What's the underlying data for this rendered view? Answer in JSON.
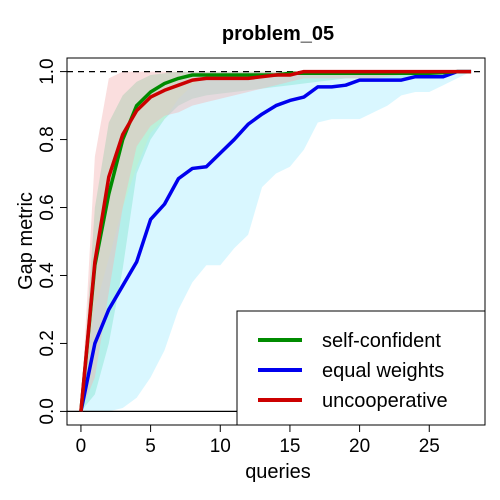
{
  "chart_data": {
    "type": "line",
    "title": "problem_05",
    "xlabel": "queries",
    "ylabel": "Gap metric",
    "xlim": [
      -1,
      29
    ],
    "ylim": [
      -0.04,
      1.04
    ],
    "xticks": [
      0,
      5,
      10,
      15,
      20,
      25
    ],
    "yticks": [
      0.0,
      0.2,
      0.4,
      0.6,
      0.8,
      1.0
    ],
    "xtick_labels": [
      "0",
      "5",
      "10",
      "15",
      "20",
      "25"
    ],
    "ytick_labels": [
      "0.0",
      "0.2",
      "0.4",
      "0.6",
      "0.8",
      "1.0"
    ],
    "reference_lines": [
      {
        "y": 1.0,
        "style": "dashed",
        "color": "#000000"
      },
      {
        "y": 0.0,
        "style": "solid",
        "color": "#000000"
      }
    ],
    "grid": false,
    "legend_position": "bottom-right",
    "series": [
      {
        "name": "self-confident",
        "color": "#008b00",
        "band_color": "#66ddaa",
        "x": [
          0,
          1,
          2,
          3,
          4,
          5,
          6,
          7,
          8,
          9,
          10,
          11,
          12,
          13,
          14,
          15,
          16,
          17,
          18,
          19,
          20,
          21,
          22,
          23,
          24,
          25,
          26,
          27,
          28
        ],
        "y": [
          0.0,
          0.43,
          0.64,
          0.8,
          0.9,
          0.94,
          0.965,
          0.98,
          0.99,
          0.99,
          0.99,
          0.99,
          0.99,
          0.99,
          0.99,
          0.995,
          0.995,
          0.995,
          0.995,
          0.995,
          0.995,
          0.995,
          0.995,
          0.995,
          0.995,
          0.995,
          0.997,
          1.0,
          1.0
        ],
        "lower": [
          0.0,
          0.05,
          0.2,
          0.42,
          0.7,
          0.8,
          0.86,
          0.9,
          0.92,
          0.93,
          0.935,
          0.94,
          0.945,
          0.95,
          0.955,
          0.96,
          0.965,
          0.97,
          0.975,
          0.98,
          0.98,
          0.98,
          0.98,
          0.98,
          0.98,
          0.985,
          0.99,
          0.995,
          1.0
        ],
        "upper": [
          0.0,
          0.6,
          0.85,
          0.93,
          0.97,
          0.99,
          0.995,
          1.0,
          1.0,
          1.0,
          1.0,
          1.0,
          1.0,
          1.0,
          1.0,
          1.0,
          1.0,
          1.0,
          1.0,
          1.0,
          1.0,
          1.0,
          1.0,
          1.0,
          1.0,
          1.0,
          1.0,
          1.0,
          1.0
        ]
      },
      {
        "name": "equal weights",
        "color": "#0000ee",
        "band_color": "#aaeeff",
        "x": [
          0,
          1,
          2,
          3,
          4,
          5,
          6,
          7,
          8,
          9,
          10,
          11,
          12,
          13,
          14,
          15,
          16,
          17,
          18,
          19,
          20,
          21,
          22,
          23,
          24,
          25,
          26,
          27,
          28
        ],
        "y": [
          0.0,
          0.2,
          0.3,
          0.37,
          0.44,
          0.565,
          0.61,
          0.685,
          0.715,
          0.72,
          0.76,
          0.8,
          0.845,
          0.875,
          0.9,
          0.915,
          0.925,
          0.955,
          0.955,
          0.96,
          0.975,
          0.975,
          0.975,
          0.975,
          0.985,
          0.985,
          0.985,
          1.0,
          1.0
        ],
        "lower": [
          0.0,
          0.0,
          0.0,
          0.01,
          0.04,
          0.1,
          0.18,
          0.3,
          0.38,
          0.43,
          0.43,
          0.48,
          0.52,
          0.66,
          0.7,
          0.72,
          0.77,
          0.85,
          0.86,
          0.86,
          0.86,
          0.88,
          0.9,
          0.93,
          0.94,
          0.94,
          0.96,
          0.98,
          1.0
        ],
        "upper": [
          0.0,
          0.3,
          0.45,
          0.6,
          0.72,
          0.82,
          0.86,
          0.92,
          0.96,
          0.98,
          0.99,
          0.99,
          0.99,
          0.995,
          0.995,
          1.0,
          1.0,
          1.0,
          1.0,
          1.0,
          1.0,
          1.0,
          1.0,
          1.0,
          1.0,
          1.0,
          1.0,
          1.0,
          1.0
        ]
      },
      {
        "name": "uncooperative",
        "color": "#cc0000",
        "band_color": "#f4b6b6",
        "x": [
          0,
          1,
          2,
          3,
          4,
          5,
          6,
          7,
          8,
          9,
          10,
          11,
          12,
          13,
          14,
          15,
          16,
          17,
          18,
          19,
          20,
          21,
          22,
          23,
          24,
          25,
          26,
          27,
          28
        ],
        "y": [
          0.0,
          0.44,
          0.69,
          0.815,
          0.885,
          0.925,
          0.945,
          0.96,
          0.975,
          0.98,
          0.98,
          0.98,
          0.98,
          0.985,
          0.99,
          0.99,
          1.0,
          1.0,
          1.0,
          1.0,
          1.0,
          1.0,
          1.0,
          1.0,
          1.0,
          1.0,
          1.0,
          1.0,
          1.0
        ],
        "lower": [
          0.0,
          0.1,
          0.35,
          0.6,
          0.78,
          0.84,
          0.87,
          0.88,
          0.9,
          0.91,
          0.92,
          0.93,
          0.94,
          0.95,
          0.96,
          0.97,
          0.98,
          0.98,
          0.98,
          0.98,
          0.98,
          0.98,
          0.985,
          0.99,
          0.99,
          0.995,
          0.995,
          1.0,
          1.0
        ],
        "upper": [
          0.0,
          0.75,
          0.98,
          1.0,
          1.0,
          1.0,
          1.0,
          1.0,
          1.0,
          1.0,
          1.0,
          1.0,
          1.0,
          1.0,
          1.0,
          1.0,
          1.0,
          1.0,
          1.0,
          1.0,
          1.0,
          1.0,
          1.0,
          1.0,
          1.0,
          1.0,
          1.0,
          1.0,
          1.0
        ]
      }
    ]
  }
}
